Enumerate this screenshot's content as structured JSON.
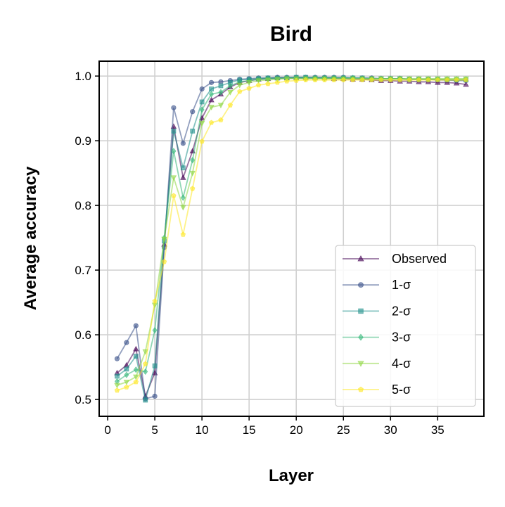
{
  "chart_data": {
    "type": "line",
    "title": "Bird",
    "xlabel": "Layer",
    "ylabel": "Average accuracy",
    "xlim": [
      -0.9,
      39.9
    ],
    "ylim": [
      0.474,
      1.023
    ],
    "xticks": [
      0,
      5,
      10,
      15,
      20,
      25,
      30,
      35
    ],
    "yticks": [
      0.5,
      0.6,
      0.7,
      0.8,
      0.9,
      1.0
    ],
    "ytick_labels": [
      "0.5",
      "0.6",
      "0.7",
      "0.8",
      "0.9",
      "1.0"
    ],
    "grid": true,
    "legend_position": "lower-right",
    "x": [
      1,
      2,
      3,
      4,
      5,
      6,
      7,
      8,
      9,
      10,
      11,
      12,
      13,
      14,
      15,
      16,
      17,
      18,
      19,
      20,
      21,
      22,
      23,
      24,
      25,
      26,
      27,
      28,
      29,
      30,
      31,
      32,
      33,
      34,
      35,
      36,
      37,
      38
    ],
    "series": [
      {
        "name": "Observed",
        "marker": "triangle",
        "color": "#440154",
        "values": [
          0.541,
          0.553,
          0.578,
          0.505,
          0.541,
          0.74,
          0.922,
          0.843,
          0.884,
          0.935,
          0.963,
          0.972,
          0.983,
          0.99,
          0.993,
          0.995,
          0.996,
          0.997,
          0.997,
          0.997,
          0.997,
          0.997,
          0.997,
          0.996,
          0.996,
          0.995,
          0.995,
          0.994,
          0.993,
          0.993,
          0.992,
          0.992,
          0.991,
          0.991,
          0.99,
          0.99,
          0.989,
          0.987
        ]
      },
      {
        "name": "1-σ",
        "marker": "circle",
        "color": "#3b528b",
        "values": [
          0.563,
          0.588,
          0.614,
          0.501,
          0.505,
          0.735,
          0.951,
          0.896,
          0.945,
          0.98,
          0.99,
          0.991,
          0.993,
          0.995,
          0.996,
          0.997,
          0.997,
          0.998,
          0.998,
          0.998,
          0.998,
          0.998,
          0.998,
          0.998,
          0.998,
          0.997,
          0.997,
          0.997,
          0.996,
          0.996,
          0.996,
          0.995,
          0.995,
          0.995,
          0.994,
          0.994,
          0.993,
          0.993
        ]
      },
      {
        "name": "2-σ",
        "marker": "square",
        "color": "#21918c",
        "values": [
          0.536,
          0.547,
          0.567,
          0.499,
          0.552,
          0.745,
          0.915,
          0.858,
          0.915,
          0.96,
          0.98,
          0.985,
          0.99,
          0.994,
          0.995,
          0.996,
          0.997,
          0.997,
          0.997,
          0.998,
          0.998,
          0.997,
          0.997,
          0.997,
          0.997,
          0.997,
          0.997,
          0.996,
          0.996,
          0.996,
          0.996,
          0.995,
          0.995,
          0.995,
          0.995,
          0.994,
          0.994,
          0.994
        ]
      },
      {
        "name": "3-σ",
        "marker": "diamond",
        "color": "#35b779",
        "values": [
          0.528,
          0.538,
          0.546,
          0.543,
          0.607,
          0.75,
          0.884,
          0.812,
          0.87,
          0.948,
          0.972,
          0.975,
          0.985,
          0.991,
          0.993,
          0.995,
          0.996,
          0.996,
          0.997,
          0.997,
          0.997,
          0.997,
          0.997,
          0.997,
          0.997,
          0.997,
          0.996,
          0.996,
          0.996,
          0.996,
          0.996,
          0.995,
          0.995,
          0.995,
          0.995,
          0.995,
          0.995,
          0.995
        ]
      },
      {
        "name": "4-σ",
        "marker": "triangle-down",
        "color": "#90d743",
        "values": [
          0.522,
          0.527,
          0.535,
          0.574,
          0.646,
          0.748,
          0.843,
          0.797,
          0.85,
          0.927,
          0.952,
          0.955,
          0.975,
          0.986,
          0.99,
          0.993,
          0.994,
          0.995,
          0.996,
          0.996,
          0.996,
          0.996,
          0.996,
          0.996,
          0.996,
          0.996,
          0.996,
          0.996,
          0.996,
          0.996,
          0.996,
          0.996,
          0.996,
          0.996,
          0.996,
          0.996,
          0.996,
          0.996
        ]
      },
      {
        "name": "5-σ",
        "marker": "pentagon",
        "color": "#fde725",
        "values": [
          0.514,
          0.519,
          0.527,
          0.555,
          0.652,
          0.713,
          0.815,
          0.755,
          0.826,
          0.899,
          0.928,
          0.932,
          0.955,
          0.976,
          0.981,
          0.986,
          0.988,
          0.99,
          0.992,
          0.993,
          0.994,
          0.994,
          0.994,
          0.994,
          0.994,
          0.994,
          0.994,
          0.994,
          0.994,
          0.994,
          0.994,
          0.994,
          0.994,
          0.994,
          0.994,
          0.994,
          0.994,
          0.994
        ]
      }
    ]
  }
}
